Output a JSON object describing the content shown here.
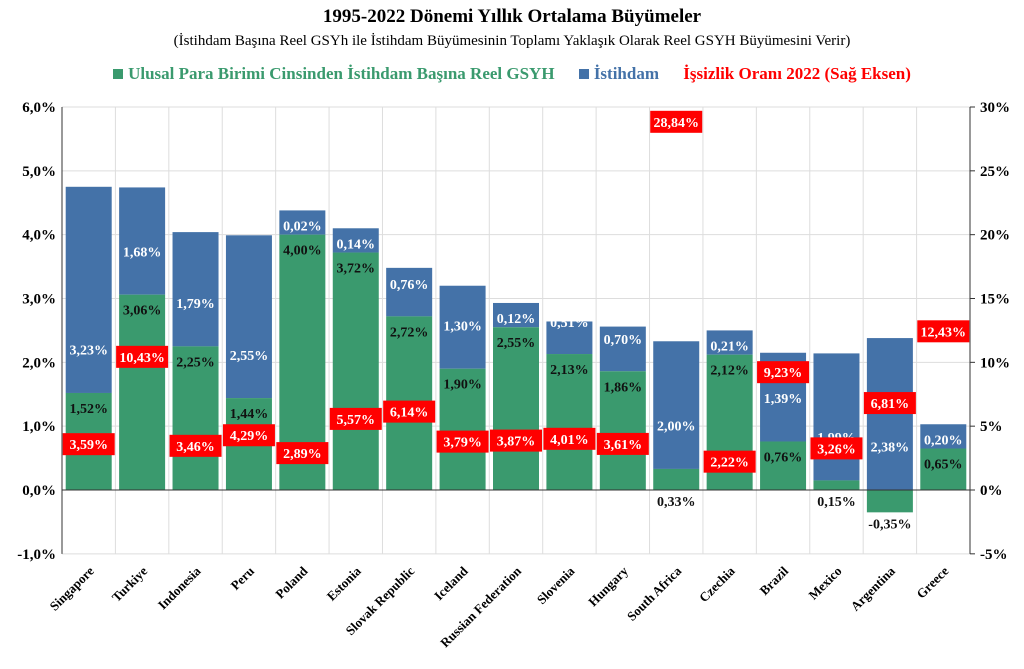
{
  "chart_data": {
    "type": "bar",
    "title": "1995-2022 Dönemi Yıllık Ortalama Büyümeler",
    "subtitle": "(İstihdam Başına Reel GSYh ile İstihdam Büyümesinin Toplamı Yaklaşık Olarak Reel GSYH Büyümesini Verir)",
    "stacked": true,
    "categories": [
      "Singapore",
      "Turkiye",
      "Indonesia",
      "Peru",
      "Poland",
      "Estonia",
      "Slovak Republic",
      "Iceland",
      "Russian Federation",
      "Slovenia",
      "Hungary",
      "South Africa",
      "Czechia",
      "Brazil",
      "Mexico",
      "Argentina",
      "Greece"
    ],
    "series": [
      {
        "name": "Ulusal Para Birimi Cinsinden İstihdam Başına Reel GSYH",
        "color": "#3a9a6e",
        "axis": "left",
        "values": [
          1.52,
          3.06,
          2.25,
          1.44,
          4.0,
          3.72,
          2.72,
          1.9,
          2.55,
          2.13,
          1.86,
          0.33,
          2.12,
          0.76,
          0.15,
          -0.35,
          0.65
        ]
      },
      {
        "name": "İstihdam",
        "color": "#4472a8",
        "axis": "left",
        "values": [
          3.23,
          1.68,
          1.79,
          2.55,
          0.02,
          0.14,
          0.76,
          1.3,
          0.12,
          0.51,
          0.7,
          2.0,
          0.21,
          1.39,
          1.99,
          2.38,
          0.2
        ]
      },
      {
        "name": "İşsizlik Oranı 2022 (Sağ Eksen)",
        "color": "#ff0000",
        "axis": "right",
        "type": "label",
        "values": [
          3.59,
          10.43,
          3.46,
          4.29,
          2.89,
          5.57,
          6.14,
          3.79,
          3.87,
          4.01,
          3.61,
          28.84,
          2.22,
          9.23,
          3.26,
          6.81,
          12.43
        ]
      }
    ],
    "left_axis": {
      "ylim": [
        -1,
        6
      ],
      "ticks": [
        "-1,0%",
        "0,0%",
        "1,0%",
        "2,0%",
        "3,0%",
        "4,0%",
        "5,0%",
        "6,0%"
      ]
    },
    "right_axis": {
      "ylim": [
        -5,
        30
      ],
      "ticks": [
        "-5%",
        "0%",
        "5%",
        "10%",
        "15%",
        "20%",
        "25%",
        "30%"
      ]
    },
    "grid": true,
    "legend": "top"
  }
}
